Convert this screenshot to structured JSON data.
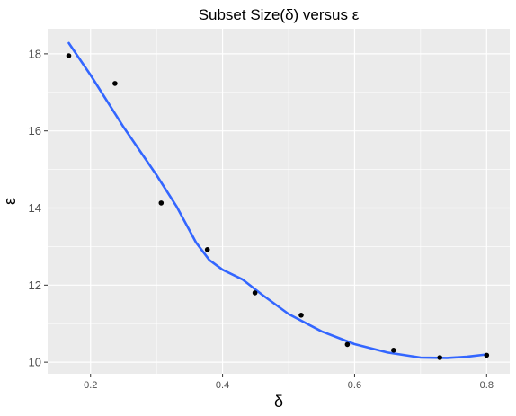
{
  "chart_data": {
    "type": "scatter",
    "title": "Subset Size(δ) versus ε",
    "xlabel": "δ",
    "ylabel": "ε",
    "xlim": [
      0.135,
      0.835
    ],
    "ylim": [
      9.7,
      18.65
    ],
    "x_ticks": [
      0.2,
      0.4,
      0.6,
      0.8
    ],
    "x_tick_labels": [
      "0.2",
      "0.4",
      "0.6",
      "0.8"
    ],
    "y_ticks": [
      10,
      12,
      14,
      16,
      18
    ],
    "y_tick_labels": [
      "10",
      "12",
      "14",
      "16",
      "18"
    ],
    "grid": true,
    "panel_background": "#ebebeb",
    "grid_color": "#ffffff",
    "point_color": "#000000",
    "smooth_color": "#3366ff",
    "points": {
      "x": [
        0.167,
        0.237,
        0.307,
        0.377,
        0.449,
        0.519,
        0.589,
        0.659,
        0.729,
        0.8
      ],
      "y": [
        17.95,
        17.23,
        14.13,
        12.92,
        11.8,
        11.22,
        10.46,
        10.31,
        10.12,
        10.18
      ]
    },
    "smooth": {
      "x": [
        0.167,
        0.2,
        0.25,
        0.3,
        0.33,
        0.36,
        0.38,
        0.4,
        0.43,
        0.46,
        0.5,
        0.55,
        0.6,
        0.65,
        0.7,
        0.74,
        0.77,
        0.8
      ],
      "y": [
        18.28,
        17.45,
        16.1,
        14.85,
        14.05,
        13.1,
        12.65,
        12.4,
        12.15,
        11.75,
        11.25,
        10.8,
        10.47,
        10.25,
        10.12,
        10.11,
        10.14,
        10.2
      ]
    }
  }
}
